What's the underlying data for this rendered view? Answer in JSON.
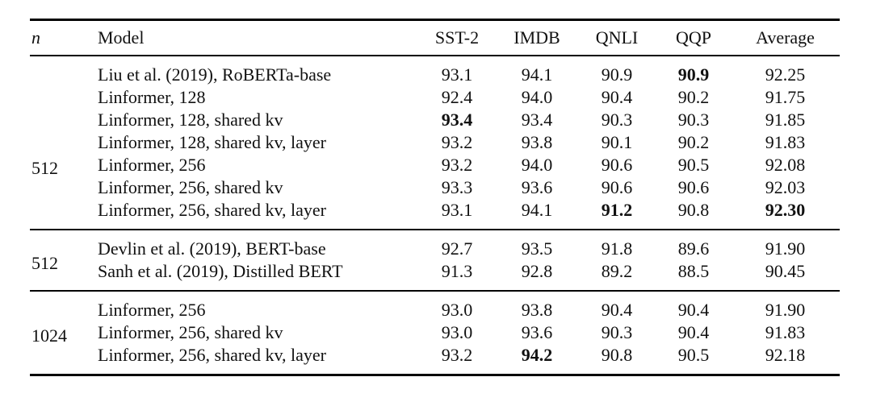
{
  "table": {
    "columns": [
      "n",
      "Model",
      "SST-2",
      "IMDB",
      "QNLI",
      "QQP",
      "Average"
    ],
    "groups": [
      {
        "n": "512",
        "rows": [
          {
            "model": "Liu et al. (2019), RoBERTa-base",
            "values": [
              "93.1",
              "94.1",
              "90.9",
              "90.9",
              "92.25"
            ],
            "bold": [
              false,
              false,
              false,
              true,
              false
            ]
          },
          {
            "model": "Linformer, 128",
            "values": [
              "92.4",
              "94.0",
              "90.4",
              "90.2",
              "91.75"
            ],
            "bold": [
              false,
              false,
              false,
              false,
              false
            ]
          },
          {
            "model": "Linformer, 128, shared kv",
            "values": [
              "93.4",
              "93.4",
              "90.3",
              "90.3",
              "91.85"
            ],
            "bold": [
              true,
              false,
              false,
              false,
              false
            ]
          },
          {
            "model": "Linformer, 128, shared kv, layer",
            "values": [
              "93.2",
              "93.8",
              "90.1",
              "90.2",
              "91.83"
            ],
            "bold": [
              false,
              false,
              false,
              false,
              false
            ]
          },
          {
            "model": "Linformer, 256",
            "values": [
              "93.2",
              "94.0",
              "90.6",
              "90.5",
              "92.08"
            ],
            "bold": [
              false,
              false,
              false,
              false,
              false
            ]
          },
          {
            "model": "Linformer, 256, shared kv",
            "values": [
              "93.3",
              "93.6",
              "90.6",
              "90.6",
              "92.03"
            ],
            "bold": [
              false,
              false,
              false,
              false,
              false
            ]
          },
          {
            "model": "Linformer, 256, shared kv, layer",
            "values": [
              "93.1",
              "94.1",
              "91.2",
              "90.8",
              "92.30"
            ],
            "bold": [
              false,
              false,
              true,
              false,
              true
            ]
          }
        ]
      },
      {
        "n": "512",
        "rows": [
          {
            "model": "Devlin et al. (2019), BERT-base",
            "values": [
              "92.7",
              "93.5",
              "91.8",
              "89.6",
              "91.90"
            ],
            "bold": [
              false,
              false,
              false,
              false,
              false
            ]
          },
          {
            "model": "Sanh et al. (2019), Distilled BERT",
            "values": [
              "91.3",
              "92.8",
              "89.2",
              "88.5",
              "90.45"
            ],
            "bold": [
              false,
              false,
              false,
              false,
              false
            ]
          }
        ]
      },
      {
        "n": "1024",
        "rows": [
          {
            "model": "Linformer, 256",
            "values": [
              "93.0",
              "93.8",
              "90.4",
              "90.4",
              "91.90"
            ],
            "bold": [
              false,
              false,
              false,
              false,
              false
            ]
          },
          {
            "model": "Linformer, 256, shared kv",
            "values": [
              "93.0",
              "93.6",
              "90.3",
              "90.4",
              "91.83"
            ],
            "bold": [
              false,
              false,
              false,
              false,
              false
            ]
          },
          {
            "model": "Linformer, 256, shared kv, layer",
            "values": [
              "93.2",
              "94.2",
              "90.8",
              "90.5",
              "92.18"
            ],
            "bold": [
              false,
              true,
              false,
              false,
              false
            ]
          }
        ]
      }
    ]
  },
  "colors": {
    "text": "#111111",
    "rule": "#000000",
    "background": "#ffffff"
  }
}
